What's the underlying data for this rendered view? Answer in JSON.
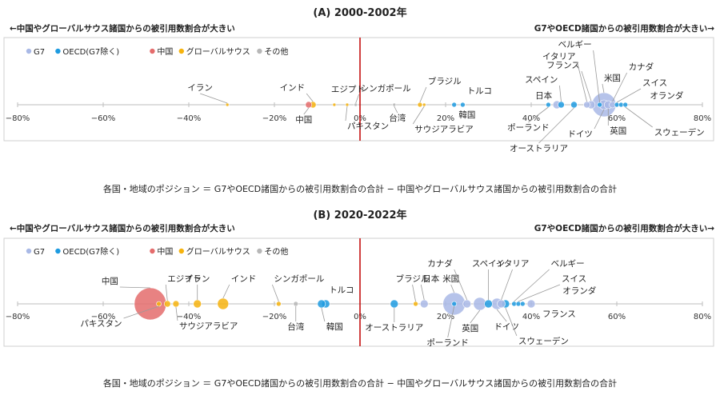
{
  "colors": {
    "G7": "#a9b9e6",
    "OECD": "#1e9be0",
    "中国": "#e46c6c",
    "グローバルサウス": "#f6b30e",
    "その他": "#b7b7b7"
  },
  "chart_data": [
    {
      "type": "scatter",
      "title": "(A) 2000-2002年",
      "left_header": "←中国やグローバルサウス諸国からの被引用数割合が大きい",
      "right_header": "G7やOECD諸国からの被引用数割合が大きい→",
      "xlim": [
        -80,
        80
      ],
      "ticks": [
        "−80%",
        "−60%",
        "−40%",
        "−20%",
        "0%",
        "20%",
        "40%",
        "60%",
        "80%"
      ],
      "legend": [
        {
          "key": "G7",
          "label": "G7"
        },
        {
          "key": "OECD",
          "label": "OECD(G7除く)"
        },
        {
          "key": "中国",
          "label": "中国"
        },
        {
          "key": "グローバルサウス",
          "label": "グローバルサウス"
        },
        {
          "key": "その他",
          "label": "その他"
        }
      ],
      "points": [
        {
          "name": "イラン",
          "x": -31,
          "group": "グローバルサウス",
          "size": 2
        },
        {
          "name": "インド",
          "x": -11,
          "group": "グローバルサウス",
          "size": 4
        },
        {
          "name": "中国",
          "x": -12,
          "group": "中国",
          "size": 4
        },
        {
          "name": "エジプト",
          "x": -6,
          "group": "グローバルサウス",
          "size": 2
        },
        {
          "name": "パキスタン",
          "x": -3,
          "group": "グローバルサウス",
          "size": 2
        },
        {
          "name": "シンガポール",
          "x": -1,
          "group": "その他",
          "size": 2
        },
        {
          "name": "台湾",
          "x": 8,
          "group": "その他",
          "size": 2
        },
        {
          "name": "ブラジル",
          "x": 14,
          "group": "グローバルサウス",
          "size": 3
        },
        {
          "name": "サウジアラビア",
          "x": 15,
          "group": "グローバルサウス",
          "size": 2
        },
        {
          "name": "トルコ",
          "x": 22,
          "group": "OECD",
          "size": 3
        },
        {
          "name": "韓国",
          "x": 24,
          "group": "OECD",
          "size": 3
        },
        {
          "name": "ポーランド",
          "x": 44,
          "group": "OECD",
          "size": 3
        },
        {
          "name": "オーストラリア",
          "x": 50,
          "group": "OECD",
          "size": 4
        },
        {
          "name": "日本",
          "x": 46,
          "group": "G7",
          "size": 5
        },
        {
          "name": "スペイン",
          "x": 47,
          "group": "OECD",
          "size": 4
        },
        {
          "name": "フランス",
          "x": 54,
          "group": "G7",
          "size": 5
        },
        {
          "name": "イタリア",
          "x": 53,
          "group": "G7",
          "size": 4
        },
        {
          "name": "ベルギー",
          "x": 56,
          "group": "OECD",
          "size": 3
        },
        {
          "name": "ドイツ",
          "x": 57,
          "group": "G7",
          "size": 6
        },
        {
          "name": "米国",
          "x": 57,
          "group": "G7",
          "size": 15
        },
        {
          "name": "英国",
          "x": 58,
          "group": "G7",
          "size": 5
        },
        {
          "name": "カナダ",
          "x": 59,
          "group": "G7",
          "size": 4
        },
        {
          "name": "スイス",
          "x": 60,
          "group": "OECD",
          "size": 3
        },
        {
          "name": "オランダ",
          "x": 61,
          "group": "OECD",
          "size": 3
        },
        {
          "name": "スウェーデン",
          "x": 62,
          "group": "OECD",
          "size": 3
        }
      ],
      "footnote": "各国・地域のポジション ＝ G7やOECD諸国からの被引用数割合の合計 − 中国やグローバルサウス諸国からの被引用数割合の合計"
    },
    {
      "type": "scatter",
      "title": "(B) 2020-2022年",
      "left_header": "←中国やグローバルサウス諸国からの被引用数割合が大きい",
      "right_header": "G7やOECD諸国からの被引用数割合が大きい→",
      "xlim": [
        -80,
        80
      ],
      "ticks": [
        "−80%",
        "−60%",
        "−40%",
        "−20%",
        "0%",
        "20%",
        "40%",
        "60%",
        "80%"
      ],
      "legend": [
        {
          "key": "G7",
          "label": "G7"
        },
        {
          "key": "OECD",
          "label": "OECD(G7除く)"
        },
        {
          "key": "中国",
          "label": "中国"
        },
        {
          "key": "グローバルサウス",
          "label": "グローバルサウス"
        },
        {
          "key": "その他",
          "label": "その他"
        }
      ],
      "points": [
        {
          "name": "中国",
          "x": -49,
          "group": "中国",
          "size": 20
        },
        {
          "name": "パキスタン",
          "x": -47,
          "group": "グローバルサウス",
          "size": 3
        },
        {
          "name": "エジプト",
          "x": -45,
          "group": "グローバルサウス",
          "size": 4
        },
        {
          "name": "サウジアラビア",
          "x": -43,
          "group": "グローバルサウス",
          "size": 4
        },
        {
          "name": "イラン",
          "x": -38,
          "group": "グローバルサウス",
          "size": 5
        },
        {
          "name": "インド",
          "x": -32,
          "group": "グローバルサウス",
          "size": 7
        },
        {
          "name": "シンガポール",
          "x": -19,
          "group": "グローバルサウス",
          "size": 3
        },
        {
          "name": "台湾",
          "x": -15,
          "group": "その他",
          "size": 3
        },
        {
          "name": "トルコ",
          "x": -8,
          "group": "OECD",
          "size": 5
        },
        {
          "name": "韓国",
          "x": -9,
          "group": "OECD",
          "size": 5
        },
        {
          "name": "オーストラリア",
          "x": 8,
          "group": "OECD",
          "size": 5
        },
        {
          "name": "ブラジル",
          "x": 13,
          "group": "グローバルサウス",
          "size": 3
        },
        {
          "name": "日本",
          "x": 15,
          "group": "G7",
          "size": 5
        },
        {
          "name": "米国",
          "x": 22,
          "group": "G7",
          "size": 14
        },
        {
          "name": "ポーランド",
          "x": 22,
          "group": "OECD",
          "size": 3
        },
        {
          "name": "カナダ",
          "x": 25,
          "group": "G7",
          "size": 5
        },
        {
          "name": "英国",
          "x": 28,
          "group": "G7",
          "size": 8
        },
        {
          "name": "スペイン",
          "x": 30,
          "group": "OECD",
          "size": 5
        },
        {
          "name": "ドイツ",
          "x": 32,
          "group": "G7",
          "size": 7
        },
        {
          "name": "スウェーデン",
          "x": 34,
          "group": "OECD",
          "size": 5
        },
        {
          "name": "イタリア",
          "x": 33,
          "group": "G7",
          "size": 5
        },
        {
          "name": "ベルギー",
          "x": 36,
          "group": "OECD",
          "size": 3
        },
        {
          "name": "スイス",
          "x": 37,
          "group": "OECD",
          "size": 3
        },
        {
          "name": "オランダ",
          "x": 38,
          "group": "OECD",
          "size": 3
        },
        {
          "name": "フランス",
          "x": 40,
          "group": "G7",
          "size": 5
        }
      ],
      "footnote": "各国・地域のポジション ＝ G7やOECD諸国からの被引用数割合の合計 − 中国やグローバルサウス諸国からの被引用数割合の合計"
    }
  ]
}
